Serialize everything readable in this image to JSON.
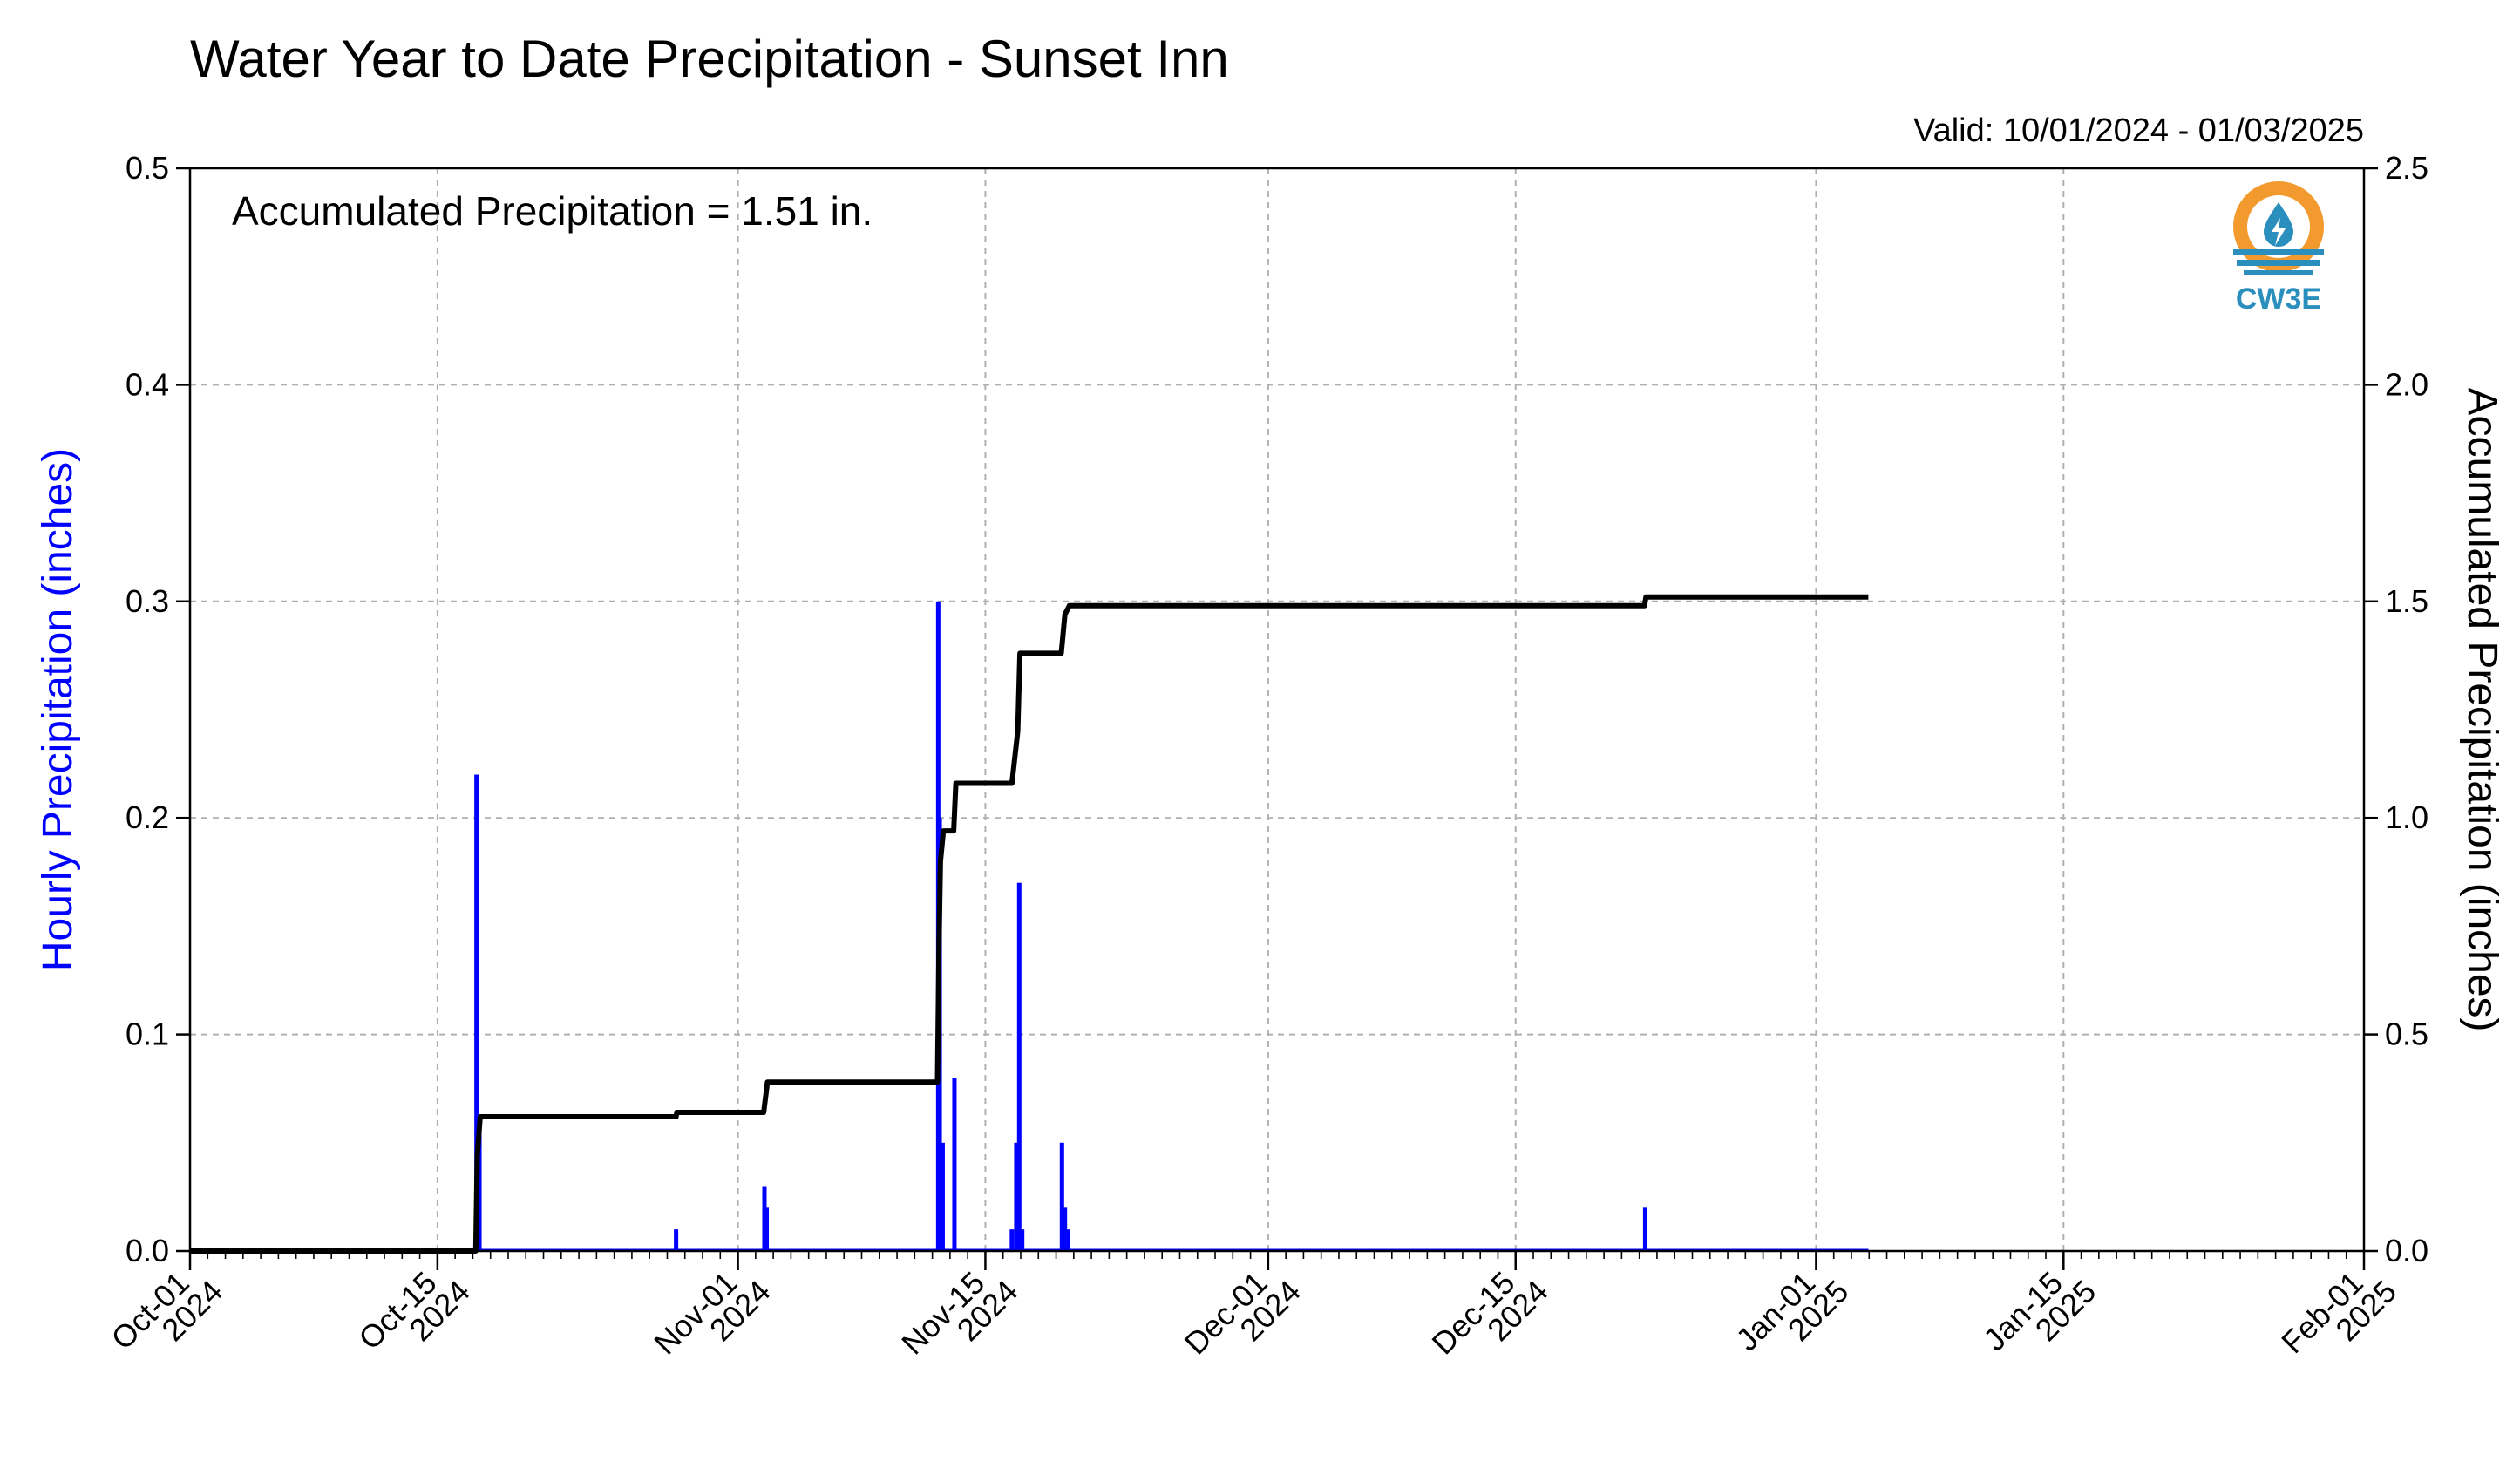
{
  "colors": {
    "hourly_bar": "#0000ff",
    "accumulated_line": "#000000",
    "grid": "#b0b0b0",
    "logo_orange": "#f39a2e",
    "logo_blue": "#2a8fbd"
  },
  "logo": {
    "text": "CW3E",
    "icon": "water-drop-logo-icon"
  },
  "chart_data": {
    "type": "bar+line",
    "title": "Water Year to Date Precipitation - Sunset Inn",
    "valid_text": "Valid: 10/01/2024 - 01/03/2025",
    "annotation": "Accumulated Precipitation = 1.51 in.",
    "y_left_label": "Hourly Precipitation (inches)",
    "y_right_label": "Accumulated Precipitation (inches)",
    "x_range": [
      "2024-10-01",
      "2025-02-01"
    ],
    "y_left_range": [
      0,
      0.5
    ],
    "y_right_range": [
      0,
      2.5
    ],
    "y_left_ticks": [
      "0.0",
      "0.1",
      "0.2",
      "0.3",
      "0.4",
      "0.5"
    ],
    "y_right_ticks": [
      "0.0",
      "0.5",
      "1.0",
      "1.5",
      "2.0",
      "2.5"
    ],
    "x_ticks": [
      {
        "date": "2024-10-01",
        "line1": "Oct-01",
        "line2": "2024"
      },
      {
        "date": "2024-10-15",
        "line1": "Oct-15",
        "line2": "2024"
      },
      {
        "date": "2024-11-01",
        "line1": "Nov-01",
        "line2": "2024"
      },
      {
        "date": "2024-11-15",
        "line1": "Nov-15",
        "line2": "2024"
      },
      {
        "date": "2024-12-01",
        "line1": "Dec-01",
        "line2": "2024"
      },
      {
        "date": "2024-12-15",
        "line1": "Dec-15",
        "line2": "2024"
      },
      {
        "date": "2025-01-01",
        "line1": "Jan-01",
        "line2": "2025"
      },
      {
        "date": "2025-01-15",
        "line1": "Jan-15",
        "line2": "2025"
      },
      {
        "date": "2025-02-01",
        "line1": "Feb-01",
        "line2": "2025"
      }
    ],
    "grid": true,
    "series": [
      {
        "name": "Hourly Precipitation",
        "type": "bar",
        "axis": "left",
        "points": [
          {
            "x": "2024-10-17 05:00",
            "y": 0.22
          },
          {
            "x": "2024-10-17 09:00",
            "y": 0.06
          },
          {
            "x": "2024-10-28 12:00",
            "y": 0.01
          },
          {
            "x": "2024-11-02 12:00",
            "y": 0.03
          },
          {
            "x": "2024-11-02 15:00",
            "y": 0.02
          },
          {
            "x": "2024-11-12 08:00",
            "y": 0.3
          },
          {
            "x": "2024-11-12 10:00",
            "y": 0.2
          },
          {
            "x": "2024-11-12 14:00",
            "y": 0.05
          },
          {
            "x": "2024-11-13 06:00",
            "y": 0.08
          },
          {
            "x": "2024-11-16 12:00",
            "y": 0.01
          },
          {
            "x": "2024-11-16 18:00",
            "y": 0.05
          },
          {
            "x": "2024-11-16 22:00",
            "y": 0.17
          },
          {
            "x": "2024-11-17 02:00",
            "y": 0.01
          },
          {
            "x": "2024-11-19 08:00",
            "y": 0.05
          },
          {
            "x": "2024-11-19 12:00",
            "y": 0.02
          },
          {
            "x": "2024-11-19 16:00",
            "y": 0.01
          },
          {
            "x": "2024-12-22 08:00",
            "y": 0.02
          }
        ]
      },
      {
        "name": "Accumulated Precipitation",
        "type": "line",
        "axis": "right",
        "points": [
          {
            "x": "2024-10-01 00:00",
            "y": 0.0
          },
          {
            "x": "2024-10-17 04:00",
            "y": 0.0
          },
          {
            "x": "2024-10-17 06:00",
            "y": 0.22
          },
          {
            "x": "2024-10-17 10:00",
            "y": 0.31
          },
          {
            "x": "2024-10-28 12:00",
            "y": 0.31
          },
          {
            "x": "2024-10-28 13:00",
            "y": 0.32
          },
          {
            "x": "2024-11-02 11:00",
            "y": 0.32
          },
          {
            "x": "2024-11-02 16:00",
            "y": 0.39
          },
          {
            "x": "2024-11-12 07:00",
            "y": 0.39
          },
          {
            "x": "2024-11-12 09:00",
            "y": 0.7
          },
          {
            "x": "2024-11-12 11:00",
            "y": 0.9
          },
          {
            "x": "2024-11-12 15:00",
            "y": 0.97
          },
          {
            "x": "2024-11-13 05:00",
            "y": 0.97
          },
          {
            "x": "2024-11-13 08:00",
            "y": 1.08
          },
          {
            "x": "2024-11-16 12:00",
            "y": 1.08
          },
          {
            "x": "2024-11-16 20:00",
            "y": 1.2
          },
          {
            "x": "2024-11-16 23:00",
            "y": 1.38
          },
          {
            "x": "2024-11-19 07:00",
            "y": 1.38
          },
          {
            "x": "2024-11-19 12:00",
            "y": 1.47
          },
          {
            "x": "2024-11-19 18:00",
            "y": 1.49
          },
          {
            "x": "2024-12-22 07:00",
            "y": 1.49
          },
          {
            "x": "2024-12-22 09:00",
            "y": 1.51
          },
          {
            "x": "2025-01-03 23:00",
            "y": 1.51
          }
        ]
      }
    ]
  }
}
